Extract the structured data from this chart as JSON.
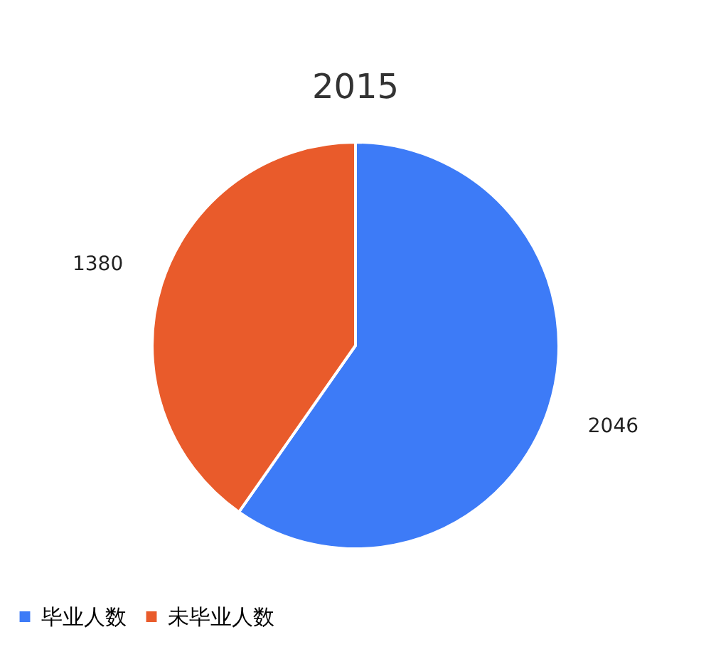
{
  "chart_data": {
    "type": "pie",
    "title": "2015",
    "categories": [
      "毕业人数",
      "未毕业人数"
    ],
    "values": [
      2046,
      1380
    ],
    "colors": [
      "#3d7bf7",
      "#e95b2b"
    ],
    "data_labels": true,
    "legend": "bottom"
  }
}
